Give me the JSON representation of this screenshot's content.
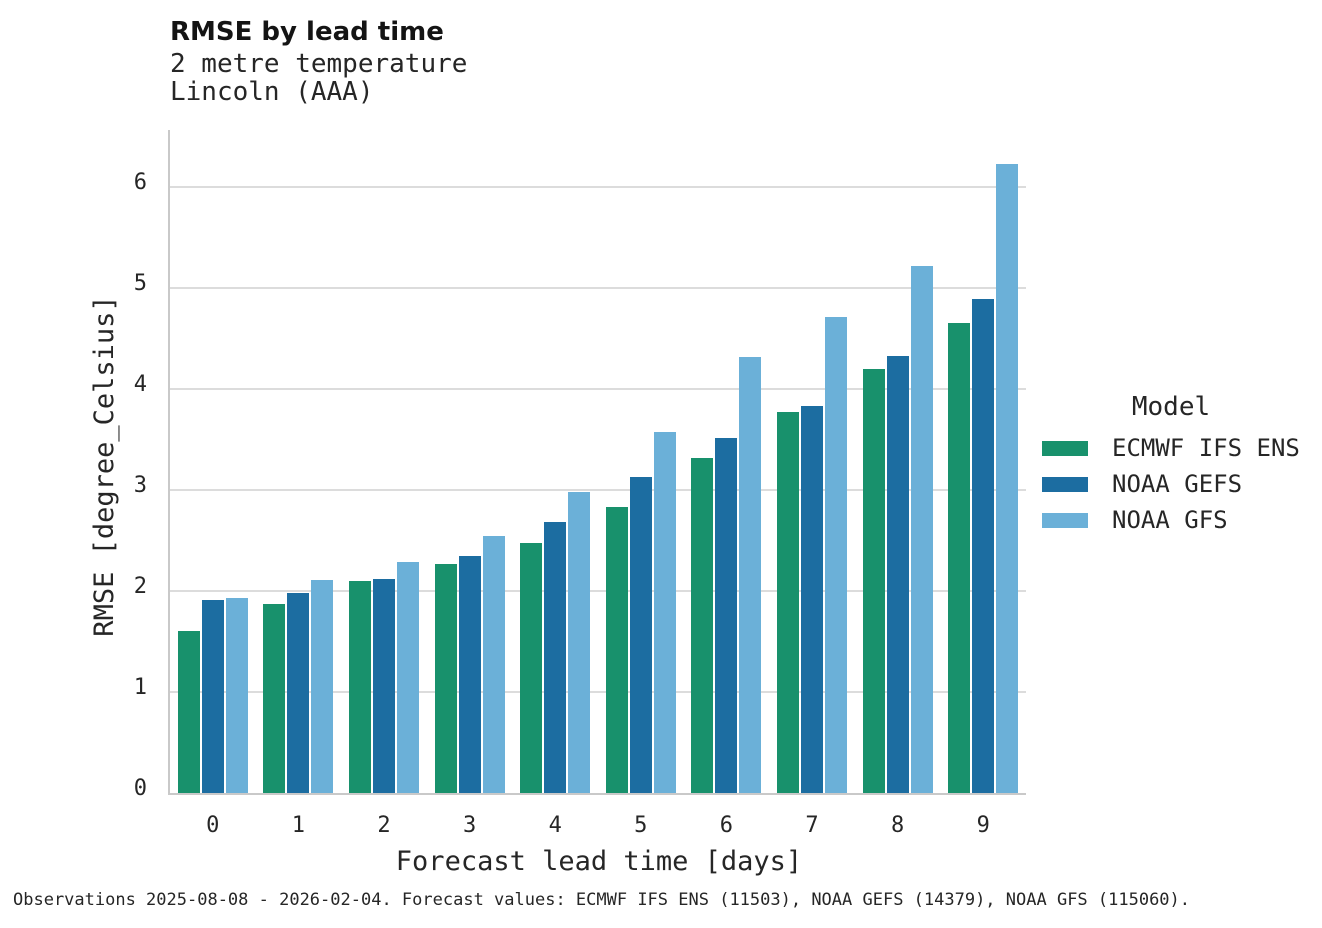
{
  "chart_data": {
    "type": "bar",
    "title": "RMSE by lead time",
    "subtitle_line1": "2 metre temperature",
    "subtitle_line2": "Lincoln (AAA)",
    "xlabel": "Forecast lead time [days]",
    "ylabel": "RMSE [degree_Celsius]",
    "categories": [
      "0",
      "1",
      "2",
      "3",
      "4",
      "5",
      "6",
      "7",
      "8",
      "9"
    ],
    "yticks": [
      0,
      1,
      2,
      3,
      4,
      5,
      6
    ],
    "ylim": [
      0,
      6.56
    ],
    "grid": "horizontal",
    "legend_title": "Model",
    "legend_position": "right",
    "series": [
      {
        "name": "ECMWF IFS ENS",
        "color": "#18916c",
        "values": [
          1.6,
          1.87,
          2.1,
          2.27,
          2.48,
          2.83,
          3.32,
          3.77,
          4.2,
          4.65
        ]
      },
      {
        "name": "NOAA GEFS",
        "color": "#1c6da1",
        "values": [
          1.91,
          1.98,
          2.12,
          2.35,
          2.68,
          3.13,
          3.51,
          3.83,
          4.33,
          4.89
        ]
      },
      {
        "name": "NOAA GFS",
        "color": "#6bb0d8",
        "values": [
          1.93,
          2.11,
          2.29,
          2.54,
          2.98,
          3.57,
          4.32,
          4.71,
          5.22,
          6.23
        ]
      }
    ]
  },
  "footer": {
    "caption": "Observations 2025-08-08 - 2026-02-04. Forecast values: ECMWF IFS ENS (11503), NOAA GEFS (14379), NOAA GFS (115060)."
  }
}
